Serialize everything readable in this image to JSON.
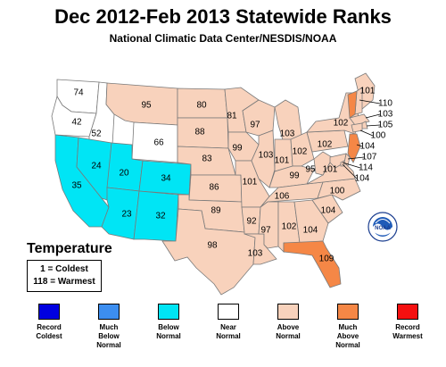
{
  "title": "Dec 2012-Feb 2013 Statewide Ranks",
  "subtitle": "National Climatic Data Center/NESDIS/NOAA",
  "colors": {
    "record_coldest": "#0000e0",
    "much_below": "#3c8ef0",
    "below": "#00e5f5",
    "near": "#ffffff",
    "above": "#f8d2bc",
    "much_above": "#f58746",
    "record_warmest": "#f51010"
  },
  "legend": {
    "title": "Temperature",
    "line1": "1 = Coldest",
    "line2": "118 = Warmest"
  },
  "categories": [
    {
      "key": "record_coldest",
      "line1": "Record",
      "line2": "Coldest",
      "line3": ""
    },
    {
      "key": "much_below",
      "line1": "Much",
      "line2": "Below",
      "line3": "Normal"
    },
    {
      "key": "below",
      "line1": "Below",
      "line2": "Normal",
      "line3": ""
    },
    {
      "key": "near",
      "line1": "Near",
      "line2": "Normal",
      "line3": ""
    },
    {
      "key": "above",
      "line1": "Above",
      "line2": "Normal",
      "line3": ""
    },
    {
      "key": "much_above",
      "line1": "Much",
      "line2": "Above",
      "line3": "Normal"
    },
    {
      "key": "record_warmest",
      "line1": "Record",
      "line2": "Warmest",
      "line3": ""
    }
  ],
  "logo_text": "NOAA",
  "states": [
    {
      "state": "WA",
      "rank": "74",
      "category": "near"
    },
    {
      "state": "OR",
      "rank": "42",
      "category": "near"
    },
    {
      "state": "ID",
      "rank": "52",
      "category": "near"
    },
    {
      "state": "MT",
      "rank": "95",
      "category": "above"
    },
    {
      "state": "WY",
      "rank": "66",
      "category": "near"
    },
    {
      "state": "CA",
      "rank": "35",
      "category": "below"
    },
    {
      "state": "NV",
      "rank": "24",
      "category": "below"
    },
    {
      "state": "UT",
      "rank": "20",
      "category": "below"
    },
    {
      "state": "CO",
      "rank": "34",
      "category": "below"
    },
    {
      "state": "AZ",
      "rank": "23",
      "category": "below"
    },
    {
      "state": "NM",
      "rank": "32",
      "category": "below"
    },
    {
      "state": "ND",
      "rank": "80",
      "category": "above"
    },
    {
      "state": "SD",
      "rank": "88",
      "category": "above"
    },
    {
      "state": "NE",
      "rank": "83",
      "category": "above"
    },
    {
      "state": "KS",
      "rank": "86",
      "category": "above"
    },
    {
      "state": "OK",
      "rank": "89",
      "category": "above"
    },
    {
      "state": "TX",
      "rank": "98",
      "category": "above"
    },
    {
      "state": "MN",
      "rank": "81",
      "category": "above"
    },
    {
      "state": "IA",
      "rank": "99",
      "category": "above"
    },
    {
      "state": "MO",
      "rank": "101",
      "category": "above"
    },
    {
      "state": "AR",
      "rank": "92",
      "category": "above"
    },
    {
      "state": "LA",
      "rank": "103",
      "category": "above"
    },
    {
      "state": "WI",
      "rank": "97",
      "category": "above"
    },
    {
      "state": "IL",
      "rank": "103",
      "category": "above"
    },
    {
      "state": "MI",
      "rank": "103",
      "category": "above"
    },
    {
      "state": "IN",
      "rank": "101",
      "category": "above"
    },
    {
      "state": "OH",
      "rank": "102",
      "category": "above"
    },
    {
      "state": "KY",
      "rank": "99",
      "category": "above"
    },
    {
      "state": "TN",
      "rank": "106",
      "category": "above"
    },
    {
      "state": "MS",
      "rank": "97",
      "category": "above"
    },
    {
      "state": "AL",
      "rank": "102",
      "category": "above"
    },
    {
      "state": "GA",
      "rank": "104",
      "category": "above"
    },
    {
      "state": "FL",
      "rank": "109",
      "category": "much_above"
    },
    {
      "state": "SC",
      "rank": "104",
      "category": "above"
    },
    {
      "state": "NC",
      "rank": "100",
      "category": "above"
    },
    {
      "state": "VA",
      "rank": "101",
      "category": "above"
    },
    {
      "state": "WV",
      "rank": "95",
      "category": "above"
    },
    {
      "state": "PA",
      "rank": "102",
      "category": "above"
    },
    {
      "state": "NY",
      "rank": "102",
      "category": "above"
    },
    {
      "state": "ME",
      "rank": "101",
      "category": "above"
    },
    {
      "state": "NH",
      "rank": "110",
      "category": "above"
    },
    {
      "state": "VT",
      "rank": "",
      "category": "much_above"
    },
    {
      "state": "MA",
      "rank": "103",
      "category": "above"
    },
    {
      "state": "RI",
      "rank": "105",
      "category": "above"
    },
    {
      "state": "CT",
      "rank": "100",
      "category": "above"
    },
    {
      "state": "NJ",
      "rank": "104",
      "category": "much_above"
    },
    {
      "state": "DE",
      "rank": "107",
      "category": "above"
    },
    {
      "state": "MD",
      "rank": "114",
      "category": "above"
    },
    {
      "state": "DC",
      "rank": "104",
      "category": "above"
    }
  ]
}
